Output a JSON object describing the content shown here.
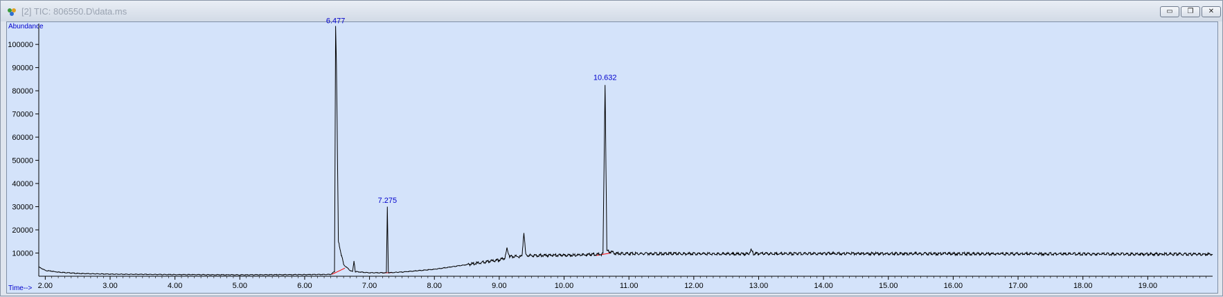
{
  "window": {
    "title": "[2] TIC: 806550.D\\data.ms",
    "icon": "chromatogram-app-icon",
    "buttons": [
      "minimize-icon",
      "restore-icon",
      "close-icon"
    ]
  },
  "colors": {
    "trace": "#000000",
    "labels": "#0000cc",
    "baseline": "#ff0000",
    "plot_background": "#d4e3fa"
  },
  "chart_data": {
    "type": "line",
    "title": "",
    "ylabel": "Abundance",
    "xlabel": "Time-->",
    "xlim": [
      1.9,
      20.0
    ],
    "ylim": [
      0,
      109000
    ],
    "grid": false,
    "x_ticks": [
      "2.00",
      "3.00",
      "4.00",
      "5.00",
      "6.00",
      "7.00",
      "8.00",
      "9.00",
      "10.00",
      "11.00",
      "12.00",
      "13.00",
      "14.00",
      "15.00",
      "16.00",
      "17.00",
      "18.00",
      "19.00"
    ],
    "y_ticks": [
      "10000",
      "20000",
      "30000",
      "40000",
      "50000",
      "60000",
      "70000",
      "80000",
      "90000",
      "100000"
    ],
    "peak_labels": [
      {
        "text": "6.477",
        "x": 6.477,
        "y": 108000
      },
      {
        "text": "7.275",
        "x": 7.275,
        "y": 30500
      },
      {
        "text": "10.632",
        "x": 10.632,
        "y": 83500
      }
    ],
    "series": [
      {
        "points": [
          [
            1.9,
            4000
          ],
          [
            2.0,
            2500
          ],
          [
            2.2,
            1800
          ],
          [
            2.5,
            1200
          ],
          [
            3.0,
            900
          ],
          [
            4.0,
            700
          ],
          [
            5.0,
            600
          ],
          [
            6.0,
            700
          ],
          [
            6.4,
            800
          ],
          [
            6.46,
            2000
          ],
          [
            6.477,
            108000
          ],
          [
            6.49,
            92000
          ],
          [
            6.52,
            15000
          ],
          [
            6.6,
            5000
          ],
          [
            6.7,
            2500
          ],
          [
            6.74,
            2000
          ],
          [
            6.76,
            7000
          ],
          [
            6.78,
            2000
          ],
          [
            7.0,
            1500
          ],
          [
            7.26,
            1500
          ],
          [
            7.275,
            30000
          ],
          [
            7.29,
            1500
          ],
          [
            7.5,
            1800
          ],
          [
            8.0,
            3000
          ],
          [
            8.5,
            5000
          ],
          [
            9.0,
            7000
          ],
          [
            9.09,
            8000
          ],
          [
            9.12,
            12000
          ],
          [
            9.16,
            8500
          ],
          [
            9.35,
            8500
          ],
          [
            9.38,
            19000
          ],
          [
            9.41,
            9000
          ],
          [
            9.8,
            9000
          ],
          [
            10.3,
            9200
          ],
          [
            10.6,
            9500
          ],
          [
            10.632,
            83000
          ],
          [
            10.66,
            11000
          ],
          [
            10.8,
            9800
          ],
          [
            12.0,
            9700
          ],
          [
            12.85,
            9600
          ],
          [
            12.88,
            11500
          ],
          [
            12.92,
            9700
          ],
          [
            14.0,
            9800
          ],
          [
            16.0,
            9700
          ],
          [
            18.0,
            9600
          ],
          [
            20.0,
            9500
          ]
        ]
      }
    ],
    "baseline_segments": [
      [
        [
          6.42,
          800
        ],
        [
          6.62,
          3500
        ]
      ],
      [
        [
          7.2,
          1400
        ],
        [
          7.35,
          1600
        ]
      ],
      [
        [
          10.5,
          9000
        ],
        [
          10.72,
          10000
        ]
      ]
    ]
  }
}
